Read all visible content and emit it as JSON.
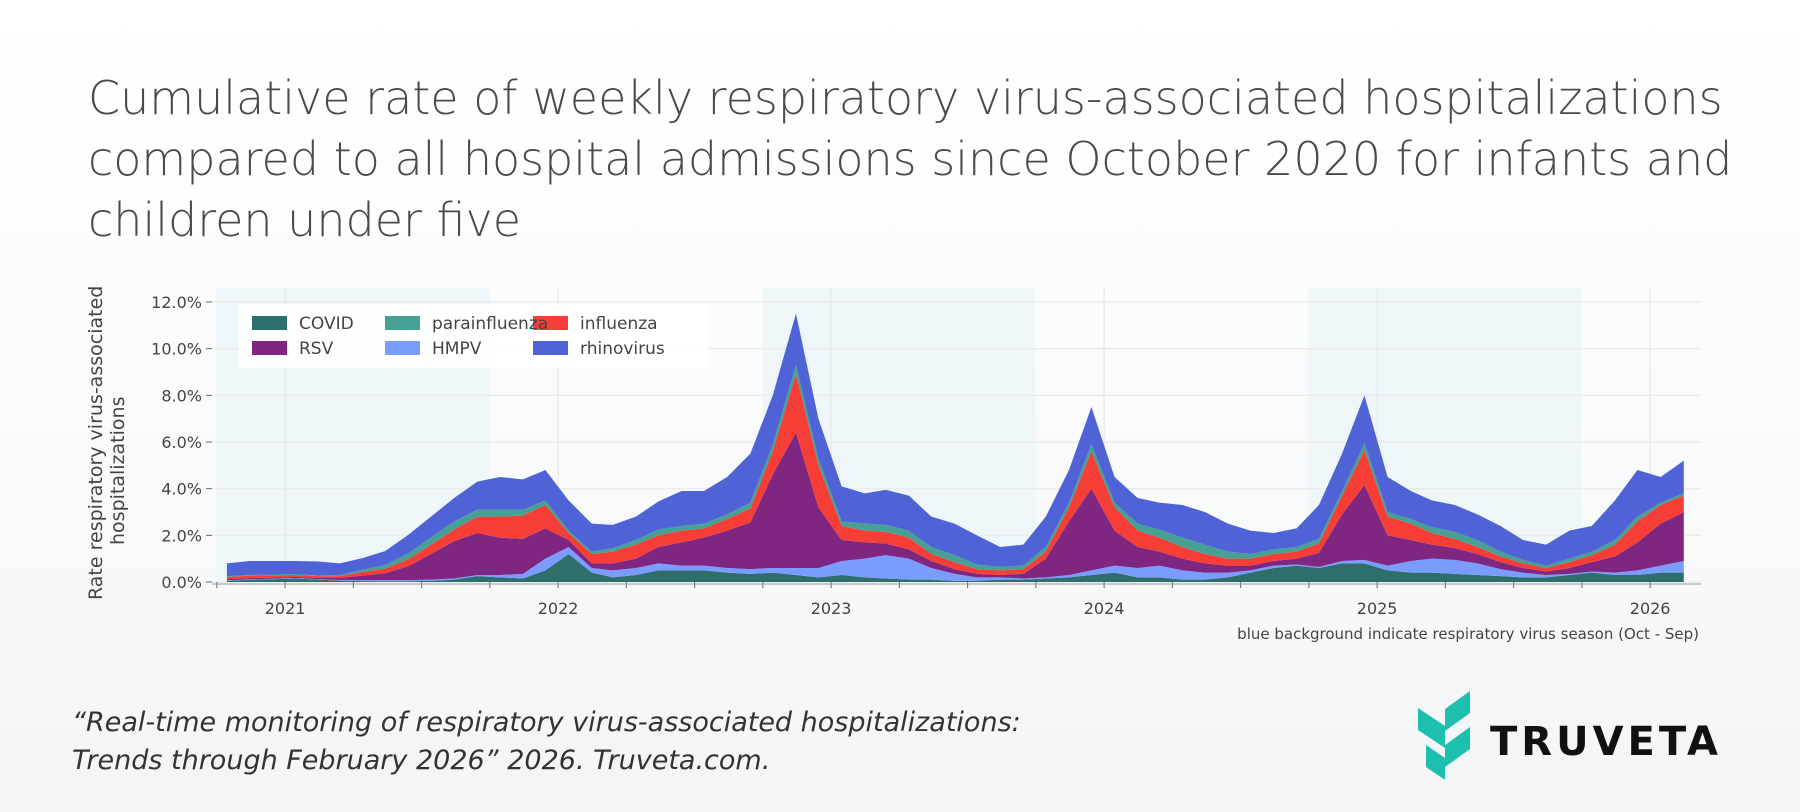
{
  "title": "Cumulative rate of weekly respiratory virus-associated hospitalizations compared to all hospital admissions since October 2020 for infants and children under five",
  "footnote": {
    "line1": "“Real-time monitoring of respiratory virus-associated hospitalizations:",
    "line2": "Trends through February 2026” 2026. Truveta.com."
  },
  "logo": {
    "text": "TRUVETA",
    "color": "#1dbfae"
  },
  "chart_data": {
    "type": "area",
    "stacked": true,
    "title": "",
    "xlabel": "",
    "ylabel_lines": [
      "Rate respiratory virus-associated",
      "hospitalizations"
    ],
    "ylim": [
      0,
      12.6
    ],
    "yticks": [
      0,
      2,
      4,
      6,
      8,
      10,
      12
    ],
    "ytick_labels": [
      "0.0%",
      "2.0%",
      "4.0%",
      "6.0%",
      "8.0%",
      "10.0%",
      "12.0%"
    ],
    "xlim": [
      "2020-09-25",
      "2026-03-10"
    ],
    "xtick_labels": [
      "2021",
      "2022",
      "2023",
      "2024",
      "2025",
      "2026"
    ],
    "grid": true,
    "legend_placement": "top-left",
    "note": "blue background indicate respiratory virus season (Oct - Sep)",
    "season_bands": [
      [
        "2020-10-01",
        "2021-10-01"
      ],
      [
        "2022-10-01",
        "2023-10-01"
      ],
      [
        "2024-10-01",
        "2025-10-01"
      ]
    ],
    "season_band_color": "#eef6f9",
    "x": [
      "2020-10-15",
      "2020-11-15",
      "2020-12-15",
      "2021-01-15",
      "2021-02-15",
      "2021-03-15",
      "2021-04-15",
      "2021-05-15",
      "2021-06-15",
      "2021-07-15",
      "2021-08-15",
      "2021-09-15",
      "2021-10-15",
      "2021-11-15",
      "2021-12-15",
      "2022-01-15",
      "2022-02-15",
      "2022-03-15",
      "2022-04-15",
      "2022-05-15",
      "2022-06-15",
      "2022-07-15",
      "2022-08-15",
      "2022-09-15",
      "2022-10-15",
      "2022-11-15",
      "2022-12-15",
      "2023-01-15",
      "2023-02-15",
      "2023-03-15",
      "2023-04-15",
      "2023-05-15",
      "2023-06-15",
      "2023-07-15",
      "2023-08-15",
      "2023-09-15",
      "2023-10-15",
      "2023-11-15",
      "2023-12-15",
      "2024-01-15",
      "2024-02-15",
      "2024-03-15",
      "2024-04-15",
      "2024-05-15",
      "2024-06-15",
      "2024-07-15",
      "2024-08-15",
      "2024-09-15",
      "2024-10-15",
      "2024-11-15",
      "2024-12-15",
      "2025-01-15",
      "2025-02-15",
      "2025-03-15",
      "2025-04-15",
      "2025-05-15",
      "2025-06-15",
      "2025-07-15",
      "2025-08-15",
      "2025-09-15",
      "2025-10-15",
      "2025-11-15",
      "2025-12-15",
      "2026-01-15",
      "2026-02-15"
    ],
    "series": [
      {
        "name": "COVID",
        "color": "#2e6f6b",
        "values": [
          0.05,
          0.1,
          0.12,
          0.15,
          0.1,
          0.06,
          0.04,
          0.03,
          0.03,
          0.05,
          0.1,
          0.25,
          0.2,
          0.15,
          0.5,
          1.2,
          0.4,
          0.2,
          0.3,
          0.5,
          0.5,
          0.5,
          0.4,
          0.35,
          0.4,
          0.3,
          0.2,
          0.3,
          0.2,
          0.15,
          0.1,
          0.1,
          0.05,
          0.05,
          0.1,
          0.1,
          0.15,
          0.2,
          0.3,
          0.4,
          0.2,
          0.2,
          0.1,
          0.1,
          0.2,
          0.4,
          0.6,
          0.7,
          0.6,
          0.8,
          0.8,
          0.5,
          0.4,
          0.4,
          0.35,
          0.3,
          0.25,
          0.2,
          0.2,
          0.3,
          0.4,
          0.3,
          0.3,
          0.4,
          0.4
        ]
      },
      {
        "name": "HMPV",
        "color": "#7b9cff",
        "values": [
          0.02,
          0.02,
          0.02,
          0.02,
          0.02,
          0.03,
          0.04,
          0.05,
          0.05,
          0.05,
          0.05,
          0.05,
          0.1,
          0.2,
          0.5,
          0.3,
          0.2,
          0.3,
          0.3,
          0.3,
          0.2,
          0.2,
          0.2,
          0.2,
          0.2,
          0.3,
          0.4,
          0.6,
          0.8,
          1.0,
          0.9,
          0.5,
          0.3,
          0.15,
          0.1,
          0.05,
          0.05,
          0.1,
          0.2,
          0.3,
          0.4,
          0.5,
          0.4,
          0.3,
          0.2,
          0.1,
          0.1,
          0.05,
          0.05,
          0.1,
          0.15,
          0.2,
          0.5,
          0.6,
          0.6,
          0.5,
          0.3,
          0.2,
          0.1,
          0.05,
          0.05,
          0.1,
          0.2,
          0.3,
          0.5
        ]
      },
      {
        "name": "RSV",
        "color": "#7e2680",
        "values": [
          0.05,
          0.05,
          0.05,
          0.05,
          0.05,
          0.08,
          0.2,
          0.3,
          0.6,
          1.1,
          1.6,
          1.8,
          1.6,
          1.5,
          1.3,
          0.3,
          0.2,
          0.3,
          0.4,
          0.7,
          1.0,
          1.2,
          1.6,
          2.0,
          4.0,
          5.8,
          2.6,
          0.9,
          0.7,
          0.5,
          0.4,
          0.3,
          0.2,
          0.15,
          0.1,
          0.2,
          0.8,
          2.3,
          3.5,
          1.5,
          0.9,
          0.6,
          0.5,
          0.4,
          0.3,
          0.2,
          0.2,
          0.25,
          0.6,
          2.0,
          3.2,
          1.3,
          0.9,
          0.6,
          0.5,
          0.4,
          0.3,
          0.2,
          0.15,
          0.25,
          0.4,
          0.7,
          1.2,
          1.8,
          2.1
        ]
      },
      {
        "name": "influenza",
        "color": "#f63e37",
        "values": [
          0.1,
          0.1,
          0.1,
          0.08,
          0.08,
          0.08,
          0.15,
          0.2,
          0.3,
          0.4,
          0.5,
          0.7,
          0.9,
          1.0,
          1.0,
          0.3,
          0.4,
          0.5,
          0.6,
          0.5,
          0.5,
          0.4,
          0.5,
          0.6,
          1.0,
          2.5,
          1.8,
          0.6,
          0.5,
          0.5,
          0.5,
          0.3,
          0.3,
          0.2,
          0.2,
          0.2,
          0.3,
          0.6,
          1.6,
          1.0,
          0.7,
          0.6,
          0.5,
          0.4,
          0.3,
          0.3,
          0.3,
          0.3,
          0.4,
          0.8,
          1.5,
          0.8,
          0.7,
          0.5,
          0.4,
          0.3,
          0.25,
          0.2,
          0.15,
          0.25,
          0.3,
          0.5,
          0.9,
          0.8,
          0.7
        ]
      },
      {
        "name": "parainfluenza",
        "color": "#46a093",
        "values": [
          0.03,
          0.03,
          0.03,
          0.03,
          0.03,
          0.05,
          0.1,
          0.15,
          0.25,
          0.3,
          0.35,
          0.3,
          0.3,
          0.25,
          0.2,
          0.1,
          0.1,
          0.15,
          0.2,
          0.25,
          0.2,
          0.2,
          0.2,
          0.25,
          0.3,
          0.4,
          0.3,
          0.2,
          0.3,
          0.3,
          0.3,
          0.3,
          0.3,
          0.2,
          0.15,
          0.15,
          0.2,
          0.2,
          0.3,
          0.2,
          0.3,
          0.35,
          0.4,
          0.4,
          0.3,
          0.2,
          0.2,
          0.2,
          0.2,
          0.2,
          0.3,
          0.2,
          0.2,
          0.25,
          0.3,
          0.3,
          0.2,
          0.15,
          0.1,
          0.15,
          0.15,
          0.2,
          0.2,
          0.1,
          0.1
        ]
      },
      {
        "name": "rhinovirus",
        "color": "#4f63d6",
        "values": [
          0.55,
          0.6,
          0.58,
          0.57,
          0.6,
          0.5,
          0.5,
          0.6,
          0.8,
          0.9,
          1.0,
          1.2,
          1.4,
          1.3,
          1.3,
          1.3,
          1.2,
          1.0,
          1.0,
          1.2,
          1.5,
          1.4,
          1.6,
          2.1,
          2.1,
          2.2,
          1.7,
          1.5,
          1.3,
          1.5,
          1.5,
          1.3,
          1.35,
          1.25,
          0.85,
          0.9,
          1.3,
          1.4,
          1.6,
          1.1,
          1.1,
          1.15,
          1.4,
          1.4,
          1.2,
          1.0,
          0.7,
          0.8,
          1.45,
          1.6,
          2.05,
          1.5,
          1.2,
          1.15,
          1.15,
          1.1,
          1.1,
          0.85,
          0.9,
          1.2,
          1.1,
          1.7,
          2.0,
          1.1,
          1.4
        ]
      }
    ]
  }
}
